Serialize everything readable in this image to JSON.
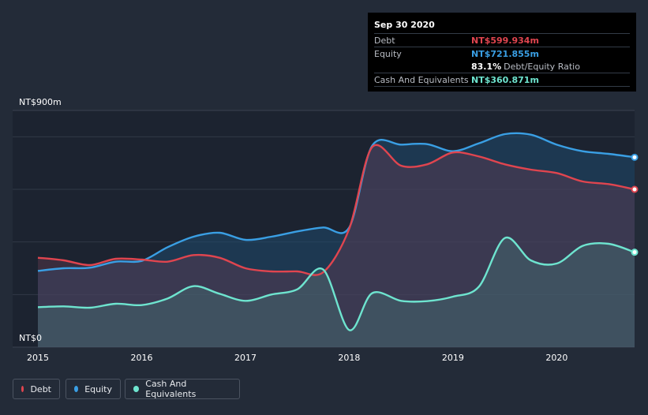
{
  "tooltip": {
    "date": "Sep 30 2020",
    "debt_label": "Debt",
    "debt_value": "NT$599.934m",
    "equity_label": "Equity",
    "equity_value": "NT$721.855m",
    "ratio_value": "83.1%",
    "ratio_label": "Debt/Equity Ratio",
    "cash_label": "Cash And Equivalents",
    "cash_value": "NT$360.871m"
  },
  "legend": {
    "debt": "Debt",
    "equity": "Equity",
    "cash": "Cash And Equivalents"
  },
  "colors": {
    "debt": "#e0454f",
    "equity": "#3a9fe4",
    "cash": "#6ee4cf",
    "background": "#232b38"
  },
  "chart_data": {
    "type": "area",
    "y_axis_labels": {
      "top": "NT$900m",
      "bottom": "NT$0"
    },
    "x_tick_labels": [
      "2015",
      "2016",
      "2017",
      "2018",
      "2019",
      "2020"
    ],
    "ylim": [
      0,
      900
    ],
    "series": [
      {
        "name": "Equity",
        "x": [
          2015.0,
          2015.25,
          2015.5,
          2015.75,
          2016.0,
          2016.25,
          2016.5,
          2016.75,
          2017.0,
          2017.25,
          2017.5,
          2017.75,
          2018.0,
          2018.22,
          2018.5,
          2018.75,
          2019.0,
          2019.25,
          2019.5,
          2019.75,
          2020.0,
          2020.25,
          2020.5,
          2020.75
        ],
        "values": [
          290,
          300,
          302,
          325,
          328,
          380,
          420,
          435,
          408,
          420,
          440,
          455,
          455,
          765,
          770,
          772,
          745,
          775,
          810,
          808,
          770,
          745,
          735,
          722
        ]
      },
      {
        "name": "Debt",
        "x": [
          2015.0,
          2015.25,
          2015.5,
          2015.75,
          2016.0,
          2016.25,
          2016.5,
          2016.75,
          2017.0,
          2017.25,
          2017.5,
          2017.75,
          2018.0,
          2018.22,
          2018.5,
          2018.75,
          2019.0,
          2019.25,
          2019.5,
          2019.75,
          2020.0,
          2020.25,
          2020.5,
          2020.75
        ],
        "values": [
          340,
          330,
          312,
          336,
          333,
          325,
          350,
          340,
          300,
          288,
          288,
          285,
          450,
          760,
          690,
          695,
          740,
          725,
          695,
          675,
          662,
          630,
          620,
          600
        ]
      },
      {
        "name": "Cash And Equivalents",
        "x": [
          2015.0,
          2015.25,
          2015.5,
          2015.75,
          2016.0,
          2016.25,
          2016.5,
          2016.75,
          2017.0,
          2017.25,
          2017.5,
          2017.75,
          2018.0,
          2018.22,
          2018.5,
          2018.75,
          2019.0,
          2019.25,
          2019.5,
          2019.75,
          2020.0,
          2020.25,
          2020.5,
          2020.75
        ],
        "values": [
          152,
          155,
          150,
          165,
          160,
          185,
          232,
          203,
          176,
          200,
          220,
          295,
          65,
          205,
          176,
          175,
          192,
          230,
          415,
          330,
          318,
          385,
          393,
          361
        ]
      }
    ]
  }
}
